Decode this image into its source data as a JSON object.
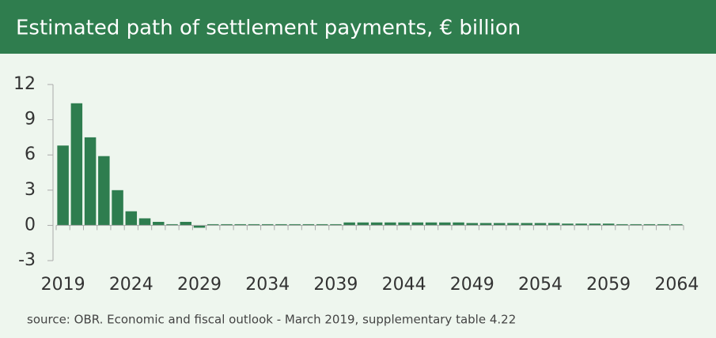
{
  "chart_data": {
    "type": "bar",
    "title": "Estimated path of settlement payments, € billion",
    "source": "source: OBR. Economic and fiscal outlook - March 2019, supplementary table 4.22",
    "categories": [
      "2019",
      null,
      null,
      null,
      null,
      "2024",
      null,
      null,
      null,
      null,
      "2029",
      null,
      null,
      null,
      null,
      "2034",
      null,
      null,
      null,
      null,
      "2039",
      null,
      null,
      null,
      null,
      "2044",
      null,
      null,
      null,
      null,
      "2049",
      null,
      null,
      null,
      null,
      "2054",
      null,
      null,
      null,
      null,
      "2059",
      null,
      null,
      null,
      null,
      "2064"
    ],
    "values": [
      6.8,
      10.4,
      7.5,
      5.9,
      3.0,
      1.2,
      0.6,
      0.3,
      0.1,
      0.3,
      -0.2,
      0.1,
      0.1,
      0.1,
      0.1,
      0.1,
      0.1,
      0.1,
      0.1,
      0.1,
      0.1,
      0.25,
      0.25,
      0.25,
      0.25,
      0.25,
      0.25,
      0.25,
      0.25,
      0.25,
      0.2,
      0.2,
      0.2,
      0.2,
      0.2,
      0.2,
      0.2,
      0.15,
      0.15,
      0.15,
      0.15,
      0.1,
      0.1,
      0.1,
      0.1,
      0.1
    ],
    "color": "#2e7d4f",
    "ylim": [
      -3,
      12
    ],
    "yticks": [
      -3,
      0,
      3,
      6,
      9,
      12
    ]
  }
}
